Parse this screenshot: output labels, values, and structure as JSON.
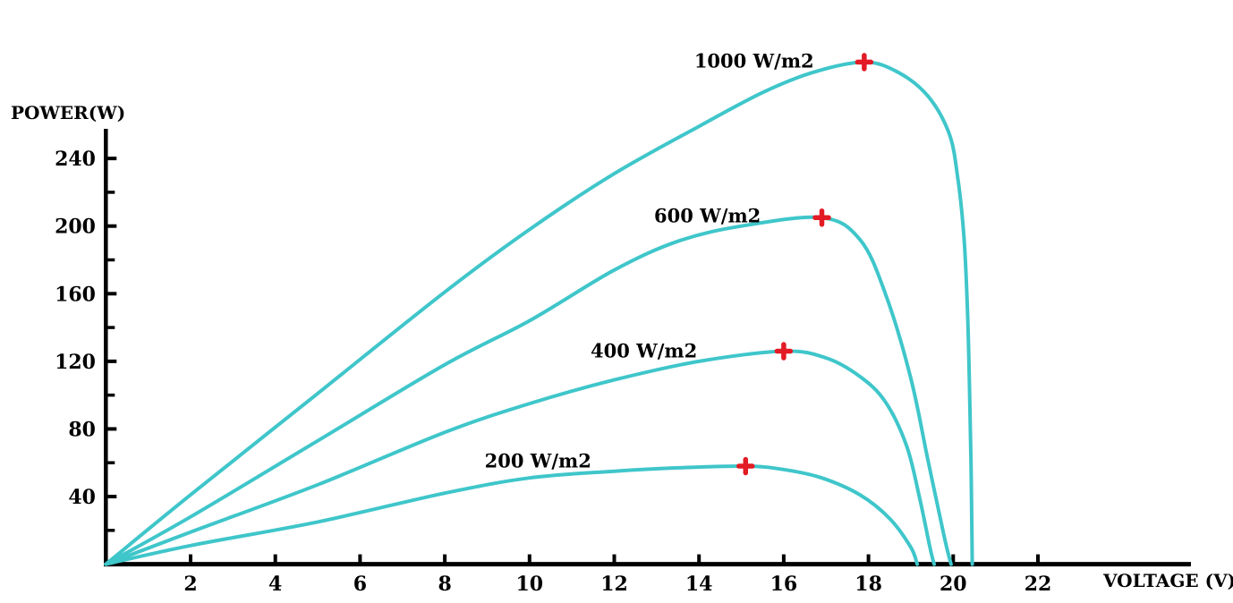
{
  "chart_data": {
    "type": "line",
    "title": "",
    "xlabel": "VOLTAGE (V)",
    "ylabel": "POWER(W)",
    "xlim": [
      0,
      25.6
    ],
    "ylim": [
      0,
      257
    ],
    "x_ticks": [
      2,
      4,
      6,
      8,
      10,
      12,
      14,
      16,
      18,
      20,
      22
    ],
    "y_ticks": [
      40,
      80,
      120,
      160,
      200,
      240
    ],
    "y_minor_ticks": [
      20,
      60,
      100,
      140,
      180,
      220
    ],
    "grid": false,
    "legend_position": "inline-curve-labels",
    "colors": {
      "curve": "#3FC6CA",
      "marker": "#E21B24",
      "axis": "#000000",
      "text": "#000000",
      "background": "#FFFFFF"
    },
    "series": [
      {
        "name": "200 W/m2",
        "irradiance_w_m2": 200,
        "mpp": {
          "voltage": 15.1,
          "power": 58
        },
        "open_circuit_voltage": 19.15,
        "points": [
          [
            0,
            0
          ],
          [
            2,
            11
          ],
          [
            5,
            25
          ],
          [
            8,
            42
          ],
          [
            10,
            51
          ],
          [
            12,
            55
          ],
          [
            13.5,
            57
          ],
          [
            15.1,
            58
          ],
          [
            16,
            56
          ],
          [
            16.9,
            51
          ],
          [
            17.8,
            41
          ],
          [
            18.5,
            27
          ],
          [
            19.0,
            10
          ],
          [
            19.15,
            0
          ]
        ]
      },
      {
        "name": "400 W/m2",
        "irradiance_w_m2": 400,
        "mpp": {
          "voltage": 16.0,
          "power": 126
        },
        "open_circuit_voltage": 19.55,
        "points": [
          [
            0,
            0
          ],
          [
            2,
            19
          ],
          [
            5,
            47
          ],
          [
            8,
            78
          ],
          [
            10,
            95
          ],
          [
            12,
            109
          ],
          [
            14,
            120
          ],
          [
            16,
            126
          ],
          [
            17,
            122
          ],
          [
            17.8,
            111
          ],
          [
            18.4,
            96
          ],
          [
            18.9,
            70
          ],
          [
            19.2,
            40
          ],
          [
            19.45,
            10
          ],
          [
            19.55,
            0
          ]
        ]
      },
      {
        "name": "600 W/m2",
        "irradiance_w_m2": 600,
        "mpp": {
          "voltage": 16.9,
          "power": 205
        },
        "open_circuit_voltage": 19.95,
        "points": [
          [
            0,
            0
          ],
          [
            2,
            28
          ],
          [
            5,
            73
          ],
          [
            8,
            118
          ],
          [
            10,
            144
          ],
          [
            12,
            174
          ],
          [
            13.5,
            191
          ],
          [
            15,
            200
          ],
          [
            16.9,
            205
          ],
          [
            17.8,
            192
          ],
          [
            18.4,
            160
          ],
          [
            19.0,
            110
          ],
          [
            19.4,
            62
          ],
          [
            19.8,
            15
          ],
          [
            19.95,
            0
          ]
        ]
      },
      {
        "name": "1000 W/m2",
        "irradiance_w_m2": 1000,
        "mpp": {
          "voltage": 17.9,
          "power": 297
        },
        "open_circuit_voltage": 20.45,
        "points": [
          [
            0,
            0
          ],
          [
            2,
            41
          ],
          [
            5,
            101
          ],
          [
            8,
            161
          ],
          [
            10,
            198
          ],
          [
            12,
            231
          ],
          [
            14,
            259
          ],
          [
            15.5,
            279
          ],
          [
            16.7,
            291
          ],
          [
            17.9,
            297
          ],
          [
            18.7,
            291
          ],
          [
            19.4,
            277
          ],
          [
            19.9,
            255
          ],
          [
            20.1,
            230
          ],
          [
            20.25,
            195
          ],
          [
            20.33,
            155
          ],
          [
            20.38,
            110
          ],
          [
            20.42,
            60
          ],
          [
            20.45,
            0
          ]
        ]
      }
    ],
    "series_labels": [
      {
        "text": "200 W/m2",
        "v": 10.2,
        "p": 61
      },
      {
        "text": "400 W/m2",
        "v": 12.7,
        "p": 126.5
      },
      {
        "text": "600 W/m2",
        "v": 14.2,
        "p": 206
      },
      {
        "text": "1000 W/m2",
        "v": 15.3,
        "p": 298
      }
    ]
  }
}
